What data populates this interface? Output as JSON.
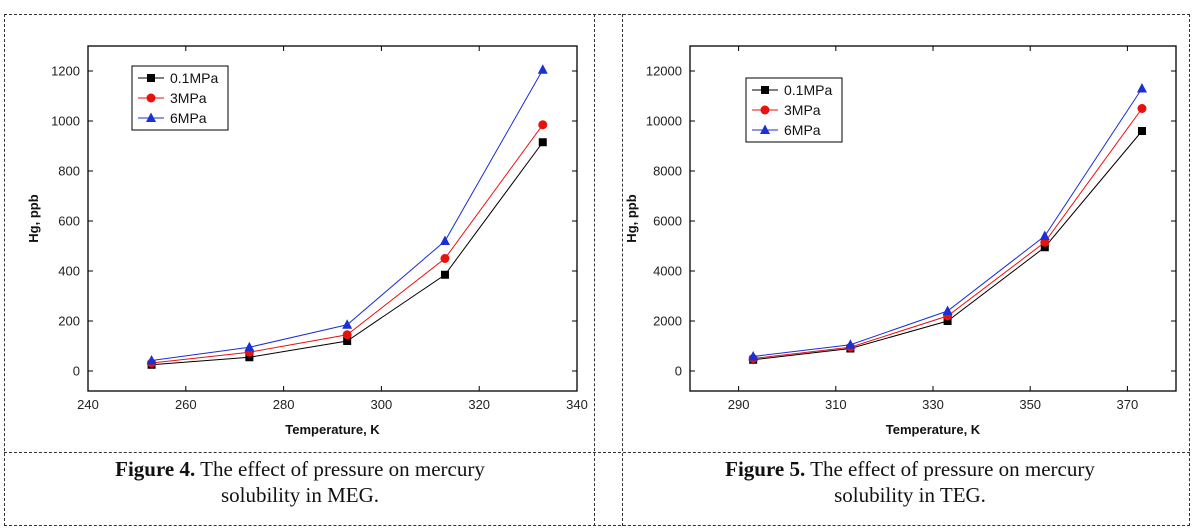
{
  "chart_data": [
    {
      "type": "line",
      "title": "",
      "xlabel": "Temperature, K",
      "ylabel": "Hg, ppb",
      "xlim": [
        240,
        340
      ],
      "ylim": [
        -80,
        1300
      ],
      "xticks": [
        240,
        260,
        280,
        300,
        320,
        340
      ],
      "yticks": [
        0,
        200,
        400,
        600,
        800,
        1000,
        1200
      ],
      "legend": "top-left",
      "grid": false,
      "x": [
        253,
        273,
        293,
        313,
        333
      ],
      "series": [
        {
          "name": "0.1MPa",
          "color": "#000000",
          "marker": "square",
          "values": [
            25,
            55,
            120,
            385,
            915
          ]
        },
        {
          "name": "3MPa",
          "color": "#e8120c",
          "marker": "circle",
          "values": [
            32,
            75,
            145,
            450,
            985
          ]
        },
        {
          "name": "6MPa",
          "color": "#1b2fd6",
          "marker": "triangle",
          "values": [
            42,
            95,
            185,
            520,
            1205
          ]
        }
      ]
    },
    {
      "type": "line",
      "title": "",
      "xlabel": "Temperature, K",
      "ylabel": "Hg, ppb",
      "xlim": [
        280,
        380
      ],
      "ylim": [
        -800,
        13000
      ],
      "xticks": [
        290,
        310,
        330,
        350,
        370
      ],
      "yticks": [
        0,
        2000,
        4000,
        6000,
        8000,
        10000,
        12000
      ],
      "legend": "top-left",
      "grid": false,
      "x": [
        293,
        313,
        333,
        353,
        373
      ],
      "series": [
        {
          "name": "0.1MPa",
          "color": "#000000",
          "marker": "square",
          "values": [
            450,
            900,
            2000,
            4950,
            9600
          ]
        },
        {
          "name": "3MPa",
          "color": "#e8120c",
          "marker": "circle",
          "values": [
            500,
            950,
            2200,
            5150,
            10500
          ]
        },
        {
          "name": "6MPa",
          "color": "#1b2fd6",
          "marker": "triangle",
          "values": [
            580,
            1050,
            2400,
            5400,
            11300
          ]
        }
      ]
    }
  ],
  "captions": [
    {
      "label": "Figure 4.",
      "text": " The effect of pressure on mercury",
      "line2": "solubility  in MEG."
    },
    {
      "label": "Figure 5.",
      "text": " The effect of pressure on mercury",
      "line2": "solubility  in TEG."
    }
  ]
}
